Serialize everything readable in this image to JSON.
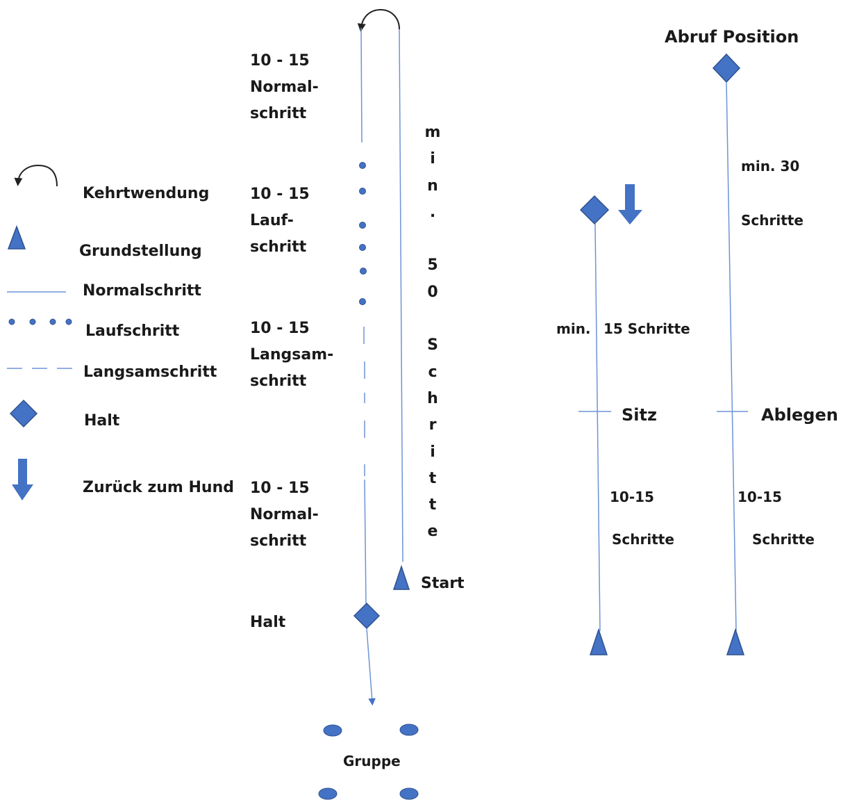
{
  "legend": {
    "kehrtwendung": "Kehrtwendung",
    "grundstellung": "Grundstellung",
    "normalschritt": "Normalschritt",
    "laufschritt": "Laufschritt",
    "langsamschritt": "Langsamschritt",
    "halt": "Halt",
    "zurueck": "Zurück zum Hund"
  },
  "course": {
    "normal_top": [
      "10 - 15",
      "Normal-",
      "schritt"
    ],
    "lauf": [
      "10 - 15",
      "Lauf-",
      "schritt"
    ],
    "langsam": [
      "10 - 15",
      "Langsam-",
      "schritt"
    ],
    "normal_bottom": [
      "10 - 15",
      "Normal-",
      "schritt"
    ],
    "halt": "Halt",
    "start": "Start",
    "gruppe": "Gruppe",
    "vertical": [
      "m",
      "i",
      "n",
      ".",
      "",
      "5",
      "0",
      "",
      "S",
      "c",
      "h",
      "r",
      "i",
      "t",
      "t",
      "e"
    ]
  },
  "right": {
    "abruf": "Abruf Position",
    "min30": "min. 30",
    "schritte_top": "Schritte",
    "min15_a": "min.",
    "min15_b": "15 Schritte",
    "sitz": "Sitz",
    "ablegen": "Ablegen",
    "sitz_count": "10-15",
    "sitz_schritte": "Schritte",
    "ablegen_count": "10-15",
    "ablegen_schritte": "Schritte"
  },
  "colors": {
    "line": "#6d93d6",
    "shape": "#4472c4",
    "shape_stroke": "#2f528f"
  }
}
